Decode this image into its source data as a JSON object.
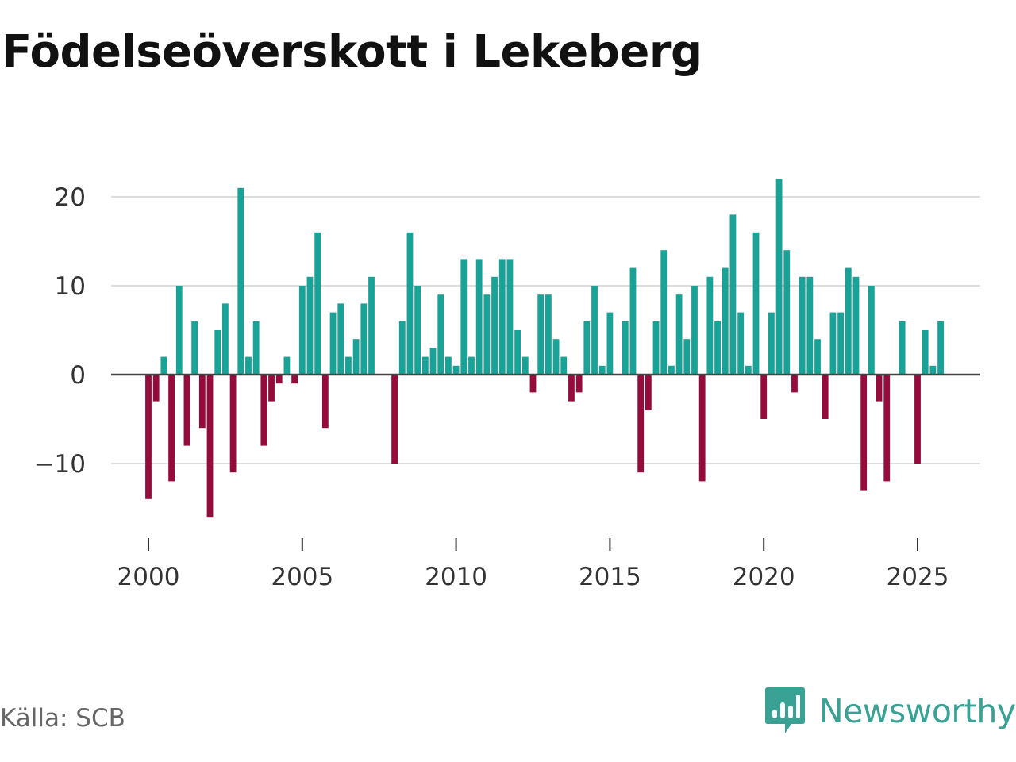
{
  "title": "Födelseöverskott i Lekeberg",
  "source": "Källa: SCB",
  "brand": {
    "name": "Newsworthy",
    "icon": "newsworthy-logo-icon"
  },
  "colors": {
    "positive": "#17a398",
    "negative": "#960a3c",
    "grid": "#dddddd",
    "zero_line": "#444444",
    "text": "#333333",
    "brand": "#3aa195"
  },
  "chart_data": {
    "type": "bar",
    "title": "Födelseöverskott i Lekeberg",
    "xlabel": "",
    "ylabel": "",
    "frequency": "quarterly",
    "start": "2000Q1",
    "ylim": [
      -18,
      25
    ],
    "yticks": [
      20,
      10,
      0,
      -10
    ],
    "ytick_labels": [
      "20",
      "10",
      "0",
      "−10"
    ],
    "xlim": [
      1999.25,
      2027.1
    ],
    "xticks": [
      2000,
      2005,
      2010,
      2015,
      2020,
      2025
    ],
    "xtick_labels": [
      "2000",
      "2005",
      "2010",
      "2015",
      "2020",
      "2025"
    ],
    "values": [
      -14,
      -3,
      2,
      -12,
      10,
      -8,
      6,
      -6,
      -16,
      5,
      8,
      -11,
      21,
      2,
      6,
      -8,
      -3,
      -1,
      2,
      -1,
      10,
      11,
      16,
      -6,
      7,
      8,
      2,
      4,
      8,
      11,
      null,
      null,
      -10,
      6,
      16,
      10,
      2,
      3,
      9,
      2,
      1,
      13,
      2,
      13,
      9,
      11,
      13,
      13,
      5,
      2,
      -2,
      9,
      9,
      4,
      2,
      -3,
      -2,
      6,
      10,
      1,
      7,
      null,
      6,
      12,
      -11,
      -4,
      6,
      14,
      1,
      9,
      4,
      10,
      -12,
      11,
      6,
      12,
      18,
      7,
      1,
      16,
      -5,
      7,
      22,
      14,
      -2,
      11,
      11,
      4,
      -5,
      7,
      7,
      12,
      11,
      -13,
      10,
      -3,
      -12,
      null,
      6,
      null,
      -10,
      5,
      1,
      6
    ]
  }
}
